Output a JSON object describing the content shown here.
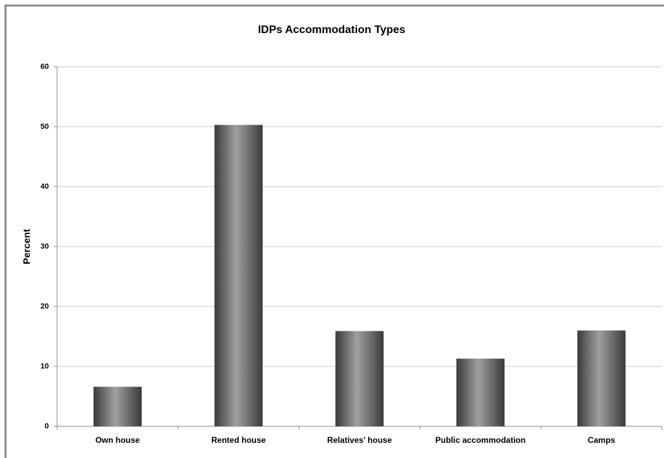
{
  "chart_data": {
    "type": "bar",
    "title": "IDPs Accommodation Types",
    "ylabel": "Percent",
    "categories": [
      "Own house",
      "Rented house",
      "Relatives’ house",
      "Public accommodation",
      "Camps"
    ],
    "values": [
      6.6,
      50.3,
      15.9,
      11.3,
      16.0
    ],
    "color": "#6e6e6e",
    "ylim": [
      0,
      60
    ],
    "yticks": [
      0,
      10,
      20,
      30,
      40,
      50,
      60
    ],
    "grid": true
  }
}
